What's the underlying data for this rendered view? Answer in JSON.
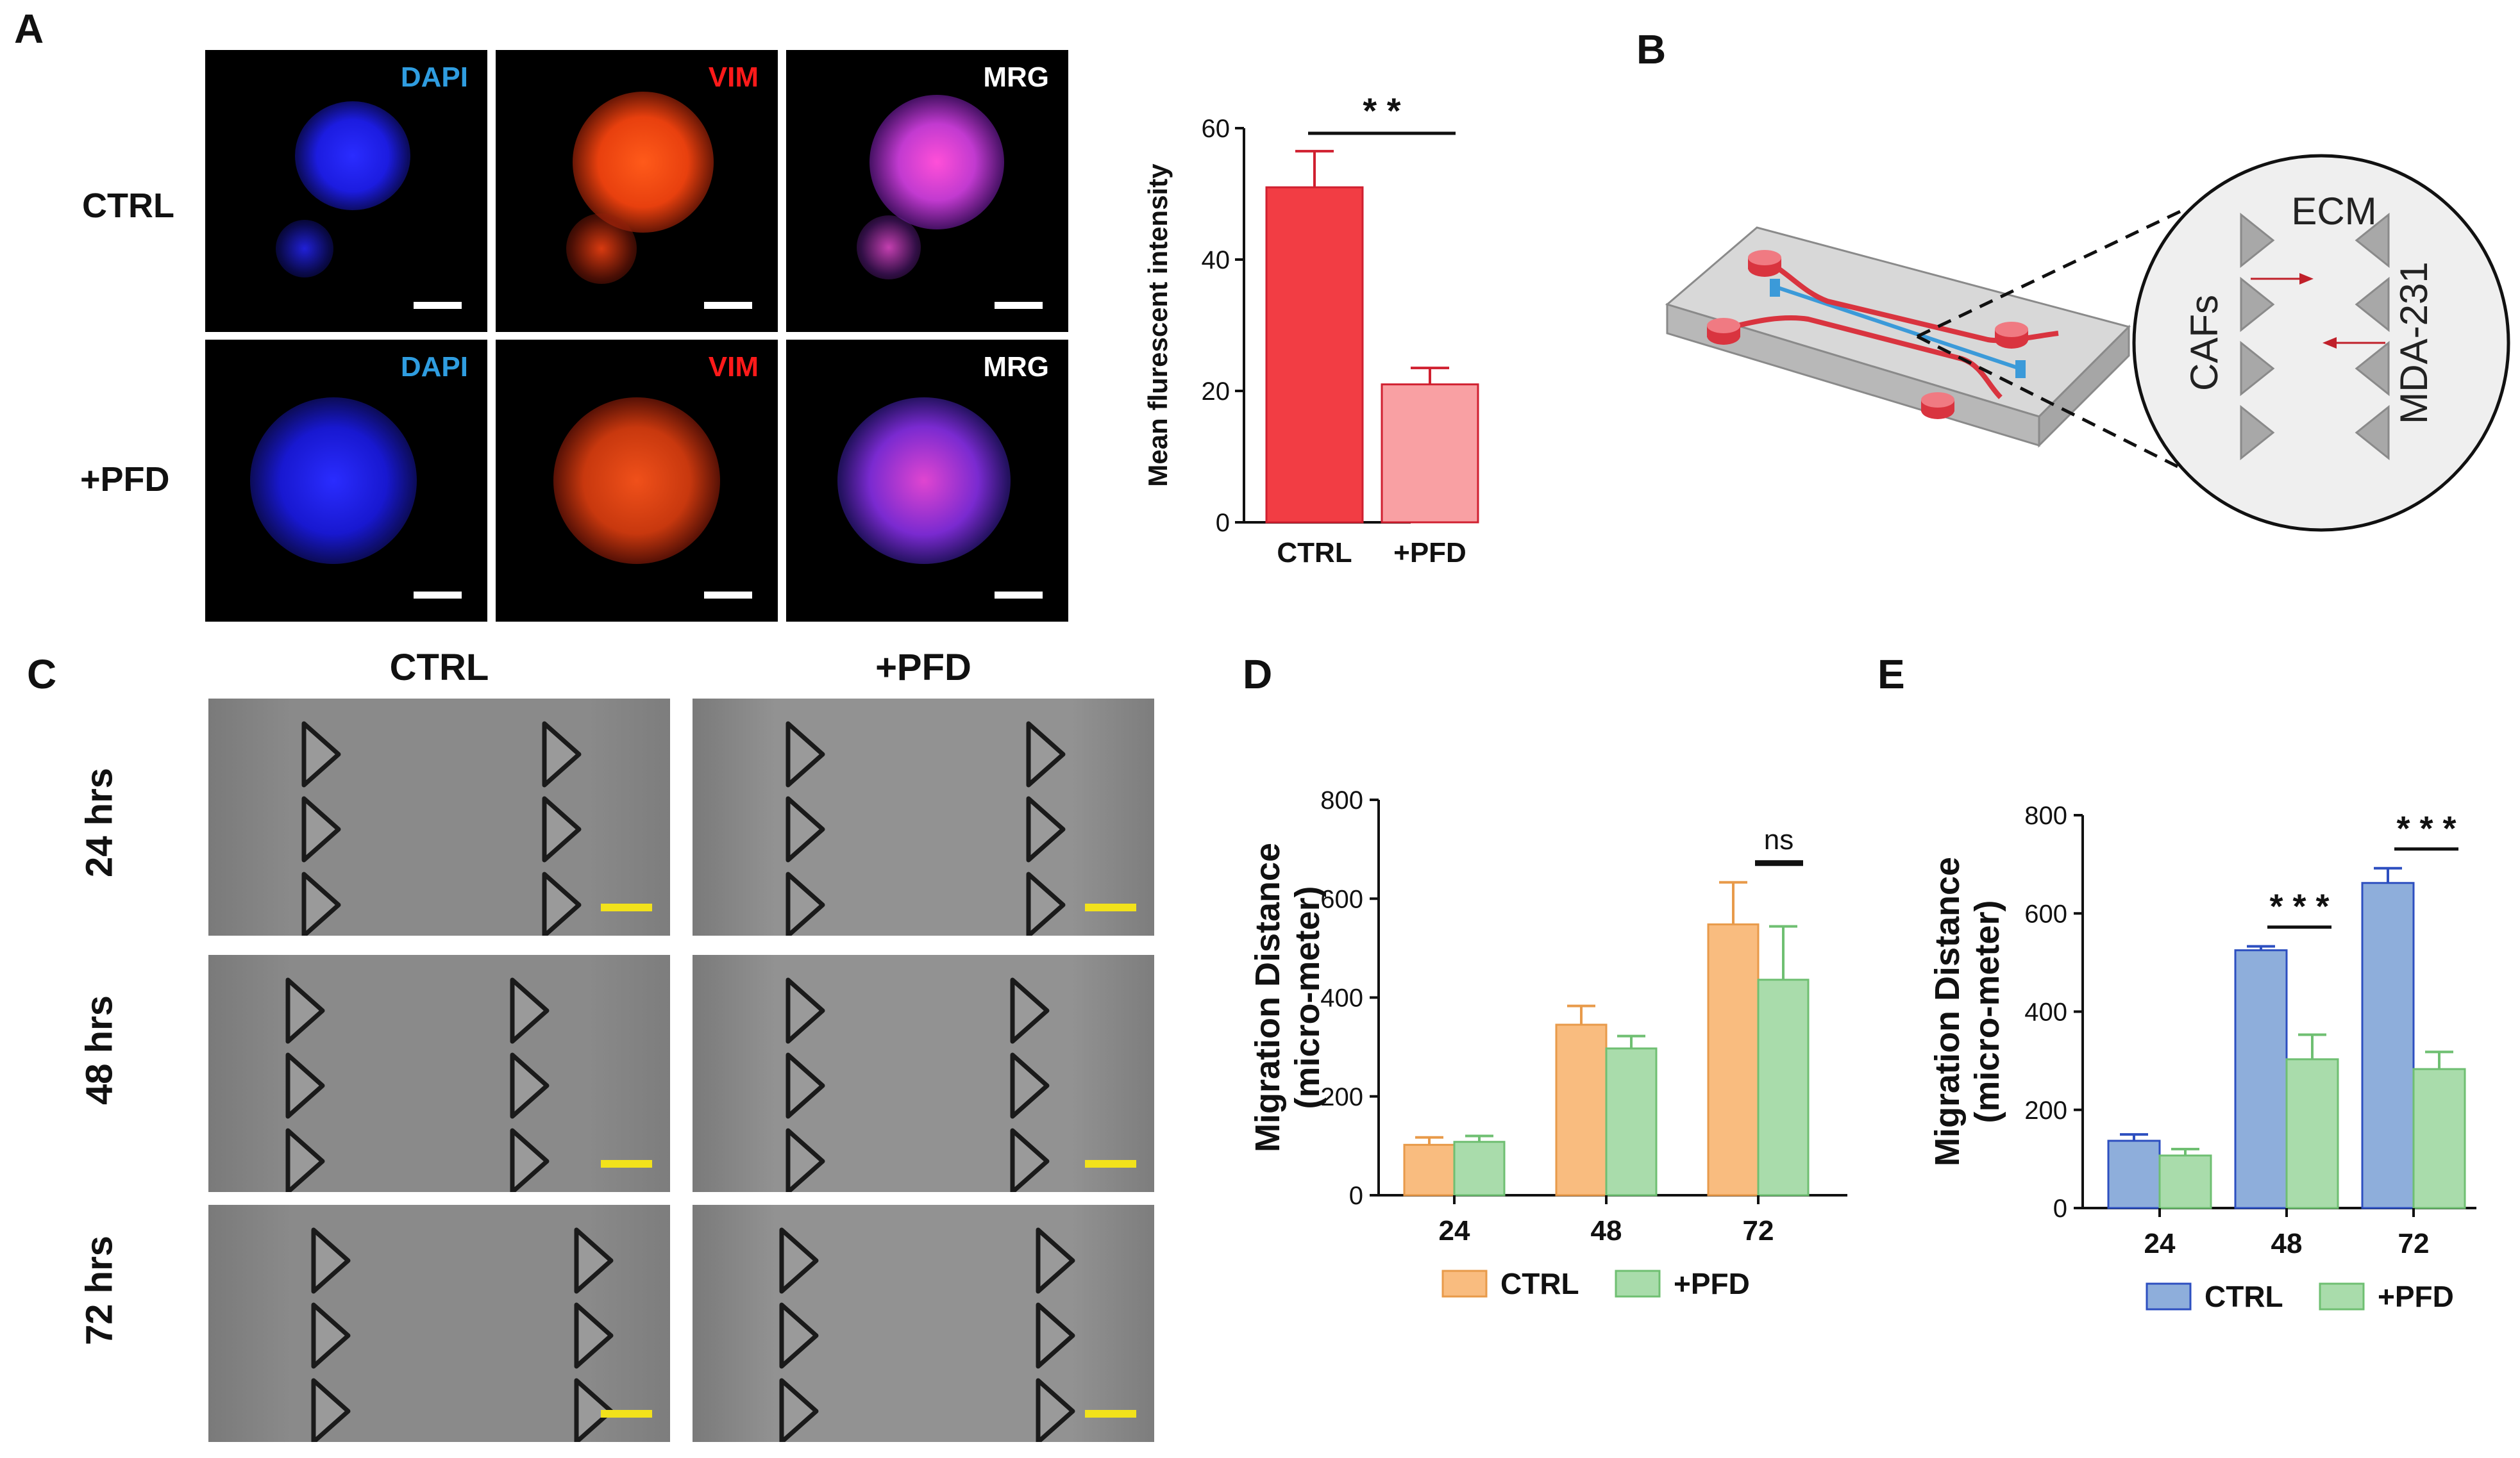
{
  "panels": {
    "A": "A",
    "B": "B",
    "C": "C",
    "D": "D",
    "E": "E"
  },
  "panel_a": {
    "rows": [
      "CTRL",
      "+PFD"
    ],
    "channels": [
      "DAPI",
      "VIM",
      "MRG"
    ],
    "channel_colors": {
      "DAPI": "#2f9de0",
      "VIM": "#ff1a1a",
      "MRG": "#ffffff"
    }
  },
  "panel_c": {
    "columns": [
      "CTRL",
      "+PFD"
    ],
    "rows": [
      "24 hrs",
      "48 hrs",
      "72 hrs"
    ]
  },
  "panel_b": {
    "labels": {
      "ecm": "ECM",
      "cafs": "CAFs",
      "mda": "MDA-231"
    },
    "colors": {
      "channel_red": "#d9343f",
      "channel_blue": "#3b9ad9",
      "arrow": "#c0202a"
    }
  },
  "chart_data": [
    {
      "id": "A-chart",
      "type": "bar",
      "categories": [
        "CTRL",
        "+PFD"
      ],
      "values": [
        51,
        21
      ],
      "errors": [
        5.5,
        2.5
      ],
      "ylabel": "Mean flurescent intensity",
      "ylim": [
        0,
        60
      ],
      "yticks": [
        0,
        20,
        40,
        60
      ],
      "significance": "* *",
      "colors": [
        "#f23d44",
        "#f9a0a3"
      ]
    },
    {
      "id": "D-chart",
      "type": "bar",
      "categories": [
        "24",
        "48",
        "72"
      ],
      "series": [
        {
          "name": "CTRL",
          "values": [
            102,
            345,
            548
          ],
          "errors": [
            15,
            38,
            85
          ],
          "color": "#f9bc7f",
          "edge": "#e89a4a"
        },
        {
          "name": "+PFD",
          "values": [
            108,
            297,
            436
          ],
          "errors": [
            12,
            25,
            108
          ],
          "color": "#a9dcab",
          "edge": "#6fbf72"
        }
      ],
      "ylabel": "Migration Distance (micro-meter)",
      "ylabel_lines": [
        "Migration Distance",
        "(micro-meter)"
      ],
      "ylim": [
        0,
        800
      ],
      "yticks": [
        0,
        200,
        400,
        600,
        800
      ],
      "annotations": [
        {
          "category": "72",
          "text": "ns"
        }
      ]
    },
    {
      "id": "E-chart",
      "type": "bar",
      "categories": [
        "24",
        "48",
        "72"
      ],
      "series": [
        {
          "name": "CTRL",
          "values": [
            137,
            525,
            662
          ],
          "errors": [
            13,
            8,
            30
          ],
          "color": "#8eaedb",
          "edge": "#2d4fc0"
        },
        {
          "name": "+PFD",
          "values": [
            107,
            303,
            283
          ],
          "errors": [
            13,
            50,
            35
          ],
          "color": "#a9dcab",
          "edge": "#6fbf72"
        }
      ],
      "ylabel": "Migration Distance (micro-meter)",
      "ylabel_lines": [
        "Migration Distance",
        "(micro-meter)"
      ],
      "ylim": [
        0,
        800
      ],
      "yticks": [
        0,
        200,
        400,
        600,
        800
      ],
      "annotations": [
        {
          "category": "48",
          "text": "* * *"
        },
        {
          "category": "72",
          "text": "* * *"
        }
      ]
    }
  ]
}
